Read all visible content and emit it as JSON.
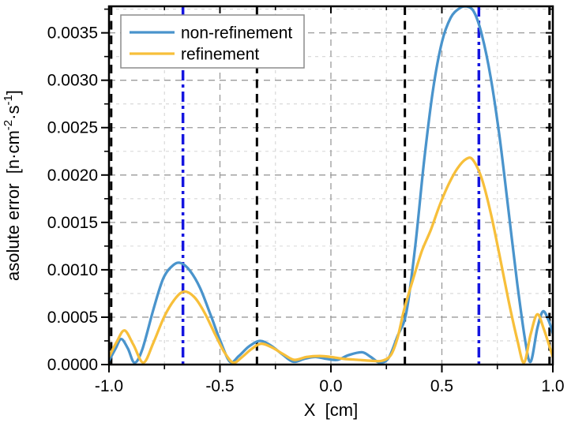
{
  "chart_data": {
    "type": "line",
    "title": "",
    "xlabel": "X  [cm]",
    "ylabel_plain": "asolute error [n·cm-2·s-1]",
    "ylabel_segments": [
      {
        "t": "asolute error  [n·cm",
        "sup": false
      },
      {
        "t": "-2",
        "sup": true
      },
      {
        "t": "·s",
        "sup": false
      },
      {
        "t": "-1",
        "sup": true
      },
      {
        "t": "]",
        "sup": false
      }
    ],
    "xlim": [
      -1.0,
      1.0
    ],
    "ylim": [
      0.0,
      0.00378
    ],
    "xticks": {
      "values": [
        -1.0,
        -0.5,
        0.0,
        0.5,
        1.0
      ],
      "labels": [
        "-1.0",
        "-0.5",
        "0.0",
        "0.5",
        "1.0"
      ],
      "minor_values": [
        -0.75,
        -0.25,
        0.25,
        0.75
      ]
    },
    "yticks": {
      "values": [
        0.0,
        0.0005,
        0.001,
        0.0015,
        0.002,
        0.0025,
        0.003,
        0.0035
      ],
      "labels": [
        "0.0000",
        "0.0005",
        "0.0010",
        "0.0015",
        "0.0020",
        "0.0025",
        "0.0030",
        "0.0035"
      ],
      "minor_values": [
        0.00025,
        0.00075,
        0.00125,
        0.00175,
        0.00225,
        0.00275,
        0.00325,
        0.00375
      ]
    },
    "grid": {
      "on": true,
      "style": "dashed",
      "major_color": "#9a9a9a",
      "minor_color": "#d6d6d6"
    },
    "frame_color": "#000000",
    "legend": {
      "position": "top-left",
      "border_color": "#8c8c8c",
      "background": "#ffffff",
      "entries": [
        {
          "label": "non-refinement",
          "color": "#4a94cc"
        },
        {
          "label": "refinement",
          "color": "#f7bf3a"
        }
      ]
    },
    "vlines": [
      {
        "x": -0.99,
        "color": "#000000",
        "style": "dashed",
        "width": 3
      },
      {
        "x": -0.3333,
        "color": "#000000",
        "style": "dashed",
        "width": 3
      },
      {
        "x": 0.3333,
        "color": "#000000",
        "style": "dashed",
        "width": 3
      },
      {
        "x": 0.985,
        "color": "#000000",
        "style": "dashed",
        "width": 3
      },
      {
        "x": -0.6667,
        "color": "#1515e0",
        "style": "dashdot",
        "width": 3.5
      },
      {
        "x": 0.6667,
        "color": "#1515e0",
        "style": "dashdot",
        "width": 3.5
      }
    ],
    "series": [
      {
        "name": "non-refinement",
        "color": "#4a94cc",
        "points": [
          [
            -1.0,
            4e-05
          ],
          [
            -0.97,
            0.00017
          ],
          [
            -0.945,
            0.00027
          ],
          [
            -0.915,
            0.00017
          ],
          [
            -0.885,
            2e-05
          ],
          [
            -0.85,
            0.00016
          ],
          [
            -0.8,
            0.00058
          ],
          [
            -0.755,
            0.00091
          ],
          [
            -0.71,
            0.00105
          ],
          [
            -0.675,
            0.00107
          ],
          [
            -0.635,
            0.00099
          ],
          [
            -0.59,
            0.00081
          ],
          [
            -0.54,
            0.00051
          ],
          [
            -0.5,
            0.00026
          ],
          [
            -0.455,
            3e-05
          ],
          [
            -0.415,
            9e-05
          ],
          [
            -0.37,
            0.00019
          ],
          [
            -0.32,
            0.00025
          ],
          [
            -0.27,
            0.0002
          ],
          [
            -0.22,
            0.00011
          ],
          [
            -0.17,
            3e-05
          ],
          [
            -0.12,
            6e-05
          ],
          [
            -0.07,
            8e-05
          ],
          [
            -0.02,
            6e-05
          ],
          [
            0.03,
            5e-05
          ],
          [
            0.08,
            0.0001
          ],
          [
            0.14,
            0.00013
          ],
          [
            0.18,
            8e-05
          ],
          [
            0.22,
            2e-05
          ],
          [
            0.26,
            7e-05
          ],
          [
            0.3,
            0.0003
          ],
          [
            0.34,
            0.00055
          ],
          [
            0.38,
            0.00125
          ],
          [
            0.42,
            0.00215
          ],
          [
            0.46,
            0.0029
          ],
          [
            0.5,
            0.0034
          ],
          [
            0.54,
            0.00366
          ],
          [
            0.58,
            0.00376
          ],
          [
            0.61,
            0.00378
          ],
          [
            0.645,
            0.00372
          ],
          [
            0.68,
            0.00348
          ],
          [
            0.72,
            0.00303
          ],
          [
            0.76,
            0.0024
          ],
          [
            0.8,
            0.00163
          ],
          [
            0.84,
            0.00085
          ],
          [
            0.875,
            0.00026
          ],
          [
            0.9,
            3e-05
          ],
          [
            0.93,
            0.00038
          ],
          [
            0.955,
            0.00056
          ],
          [
            0.98,
            0.00047
          ],
          [
            1.0,
            0.00033
          ]
        ]
      },
      {
        "name": "refinement",
        "color": "#f7bf3a",
        "points": [
          [
            -1.0,
            8e-05
          ],
          [
            -0.965,
            0.00024
          ],
          [
            -0.93,
            0.00036
          ],
          [
            -0.89,
            0.00021
          ],
          [
            -0.845,
            2e-05
          ],
          [
            -0.8,
            0.00023
          ],
          [
            -0.75,
            0.00051
          ],
          [
            -0.7,
            0.0007
          ],
          [
            -0.66,
            0.00077
          ],
          [
            -0.615,
            0.00071
          ],
          [
            -0.57,
            0.00055
          ],
          [
            -0.52,
            0.00031
          ],
          [
            -0.48,
            0.00013
          ],
          [
            -0.44,
            2e-05
          ],
          [
            -0.4,
            8e-05
          ],
          [
            -0.36,
            0.00016
          ],
          [
            -0.315,
            0.00022
          ],
          [
            -0.265,
            0.00018
          ],
          [
            -0.215,
            0.00011
          ],
          [
            -0.165,
            5e-05
          ],
          [
            -0.11,
            8e-05
          ],
          [
            -0.05,
            9e-05
          ],
          [
            0.0,
            8e-05
          ],
          [
            0.06,
            6e-05
          ],
          [
            0.12,
            5e-05
          ],
          [
            0.18,
            4e-05
          ],
          [
            0.23,
            4e-05
          ],
          [
            0.27,
            0.0001
          ],
          [
            0.3,
            0.00028
          ],
          [
            0.33,
            0.00058
          ],
          [
            0.37,
            0.0009
          ],
          [
            0.41,
            0.0012
          ],
          [
            0.45,
            0.00142
          ],
          [
            0.49,
            0.00168
          ],
          [
            0.53,
            0.0019
          ],
          [
            0.57,
            0.00207
          ],
          [
            0.61,
            0.00217
          ],
          [
            0.64,
            0.00216
          ],
          [
            0.68,
            0.00196
          ],
          [
            0.72,
            0.0016
          ],
          [
            0.76,
            0.00115
          ],
          [
            0.8,
            0.00068
          ],
          [
            0.84,
            0.00026
          ],
          [
            0.87,
            2e-05
          ],
          [
            0.9,
            0.00032
          ],
          [
            0.93,
            0.00053
          ],
          [
            0.96,
            0.00037
          ],
          [
            1.0,
            8e-05
          ]
        ]
      }
    ]
  }
}
